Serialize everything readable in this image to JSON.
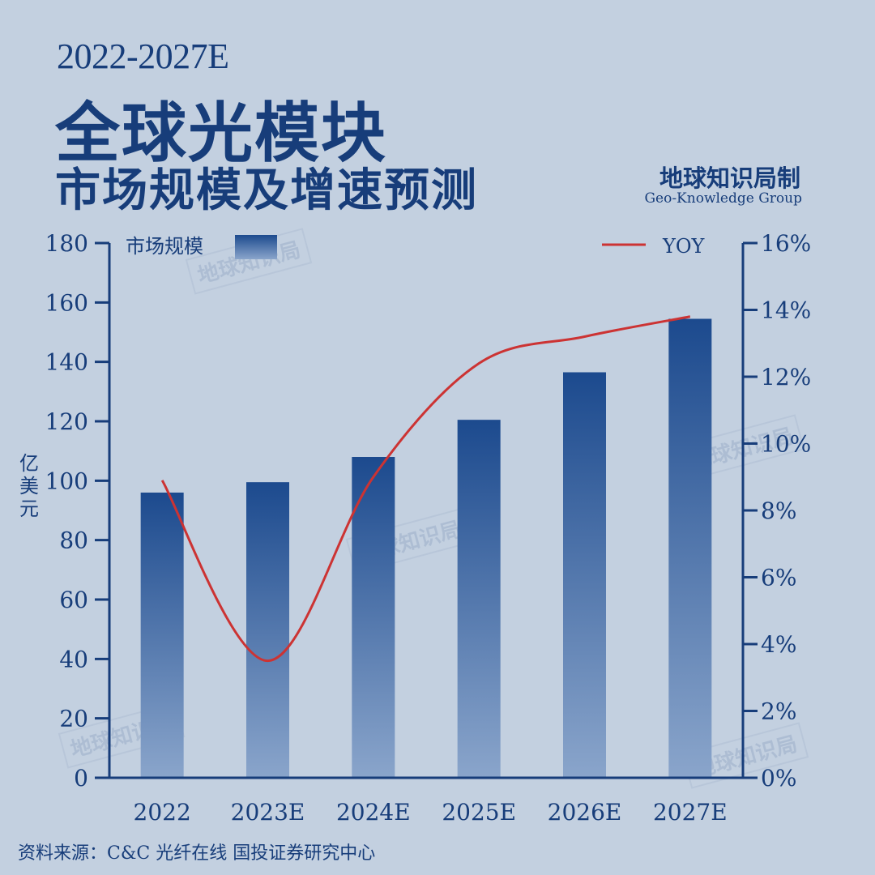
{
  "title": {
    "line1": "2022-2027E",
    "line2": "全球光模块",
    "line3": "市场规模及增速预测"
  },
  "brand": {
    "cn": "地球知识局制",
    "en": "Geo-Knowledge Group",
    "watermark": "地球知识局"
  },
  "source": "资料来源：C&C 光纤在线 国投证券研究中心",
  "colors": {
    "background": "#c3d0e0",
    "text": "#173d7a",
    "bar_top": "#1c4a8e",
    "bar_bottom": "#7f9cc4",
    "line": "#cc3333",
    "axis": "#173d7a"
  },
  "chart_data": {
    "type": "bar",
    "categories": [
      "2022",
      "2023E",
      "2024E",
      "2025E",
      "2026E",
      "2027E"
    ],
    "series": [
      {
        "name": "市场规模",
        "type": "bar",
        "axis": "left",
        "values": [
          96,
          99.5,
          108,
          120.5,
          136.5,
          154.5
        ]
      },
      {
        "name": "YOY",
        "type": "line",
        "axis": "right",
        "values": [
          8.9,
          3.5,
          9.0,
          12.4,
          13.2,
          13.8
        ]
      }
    ],
    "ylabel": "亿美元",
    "ylim": [
      0,
      180
    ],
    "yticks": [
      "0",
      "20",
      "40",
      "60",
      "80",
      "100",
      "120",
      "140",
      "160",
      "180"
    ],
    "y2lim": [
      0,
      16
    ],
    "y2ticks": [
      "0%",
      "2%",
      "4%",
      "6%",
      "8%",
      "10%",
      "12%",
      "14%",
      "16%"
    ],
    "legend": {
      "bar_label": "市场规模",
      "line_label": "YOY",
      "placement": "top"
    },
    "grid": false
  }
}
